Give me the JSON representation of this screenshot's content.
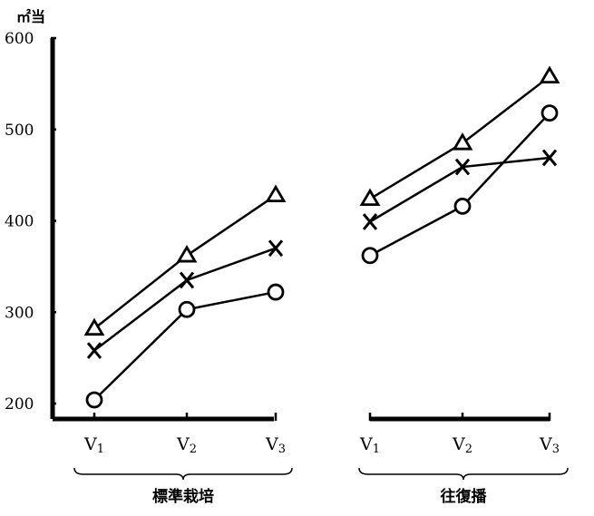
{
  "chart_data": {
    "type": "line",
    "unit_label": "㎡当",
    "ylim": [
      200,
      600
    ],
    "y_ticks": [
      "600",
      "500",
      "400",
      "300",
      "200"
    ],
    "grid": false,
    "groups": [
      {
        "label": "標準栽培",
        "categories": [
          "V1",
          "V2",
          "V3"
        ],
        "series": [
          {
            "marker": "triangle",
            "values": [
              282,
              362,
              428
            ]
          },
          {
            "marker": "cross",
            "values": [
              258,
              335,
              370
            ]
          },
          {
            "marker": "circle",
            "values": [
              204,
              303,
              322
            ]
          }
        ]
      },
      {
        "label": "往復播",
        "categories": [
          "V1",
          "V2",
          "V3"
        ],
        "series": [
          {
            "marker": "triangle",
            "values": [
              424,
              485,
              558
            ]
          },
          {
            "marker": "cross",
            "values": [
              399,
              459,
              469
            ]
          },
          {
            "marker": "circle",
            "values": [
              362,
              416,
              518
            ]
          }
        ]
      }
    ]
  }
}
